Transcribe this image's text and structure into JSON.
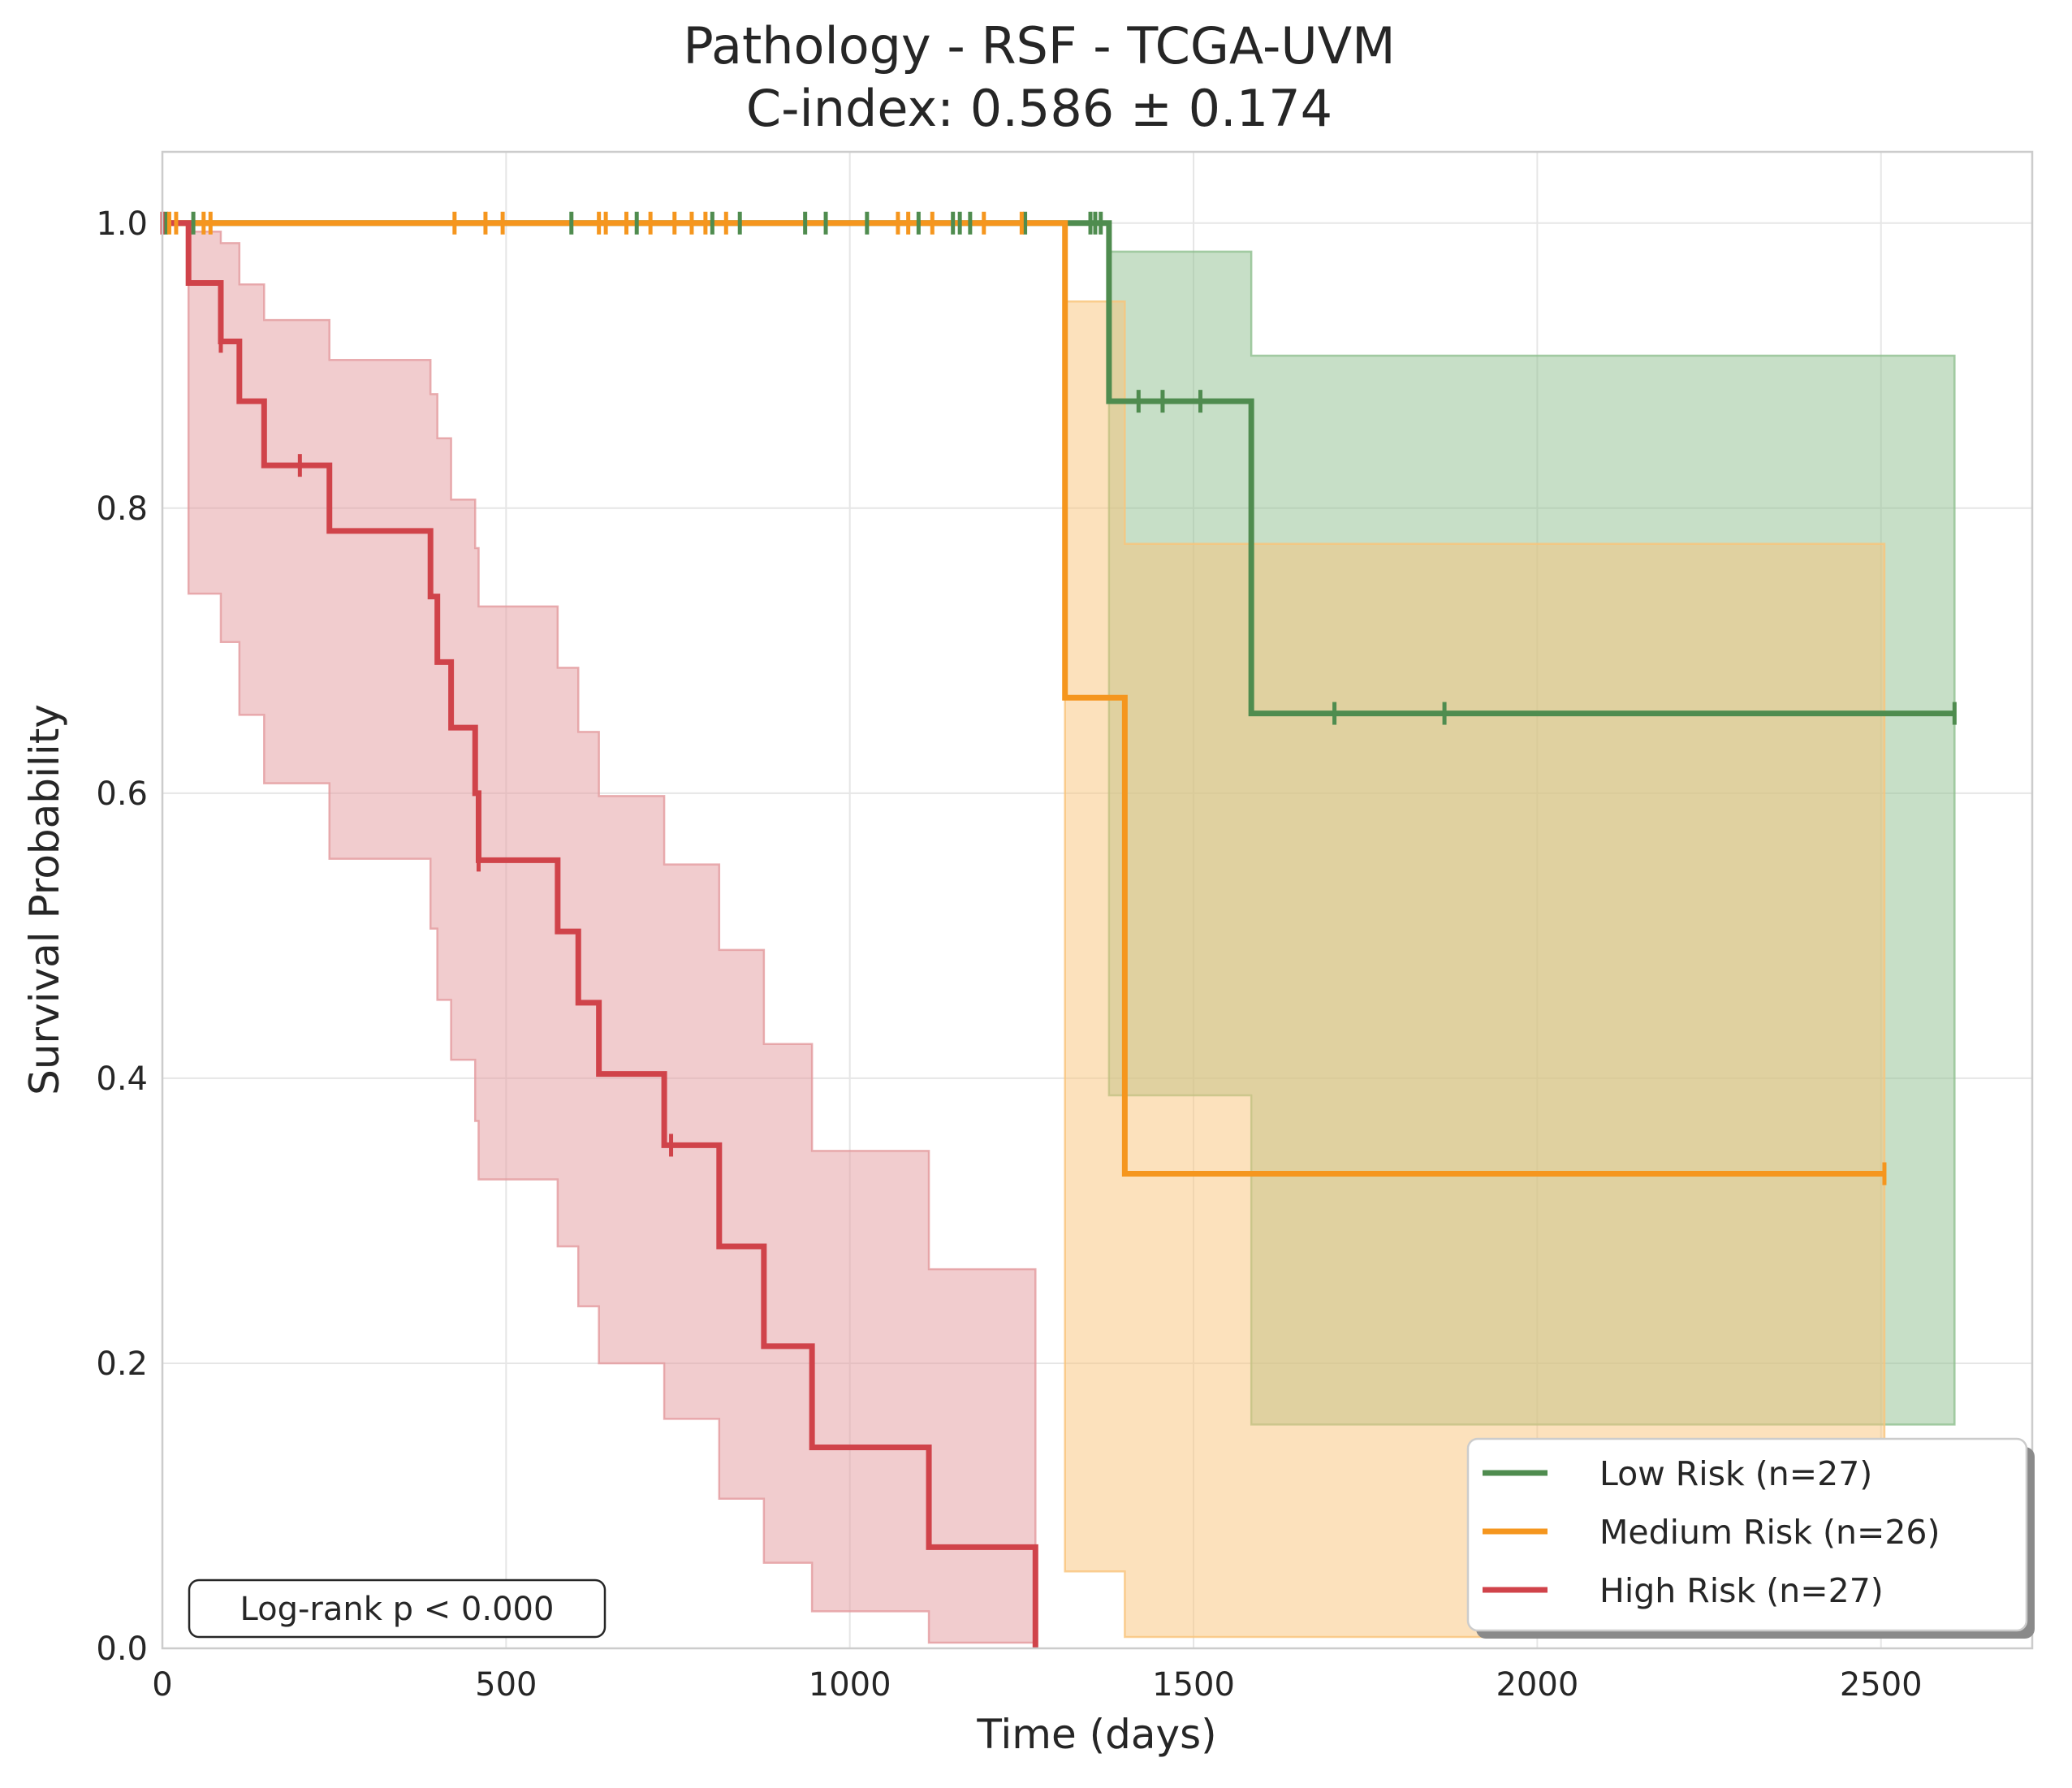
{
  "chart_data": {
    "type": "line",
    "title": "Pathology - RSF - TCGA-UVM",
    "subtitle": "C-index: 0.586 ± 0.174",
    "xlabel": "Time (days)",
    "ylabel": "Survival Probability",
    "xlim": [
      0,
      2720
    ],
    "ylim": [
      0,
      1.05
    ],
    "xticks": [
      0,
      500,
      1000,
      1500,
      2000,
      2500
    ],
    "xtick_labels": [
      "0",
      "500",
      "1000",
      "1500",
      "2000",
      "2500"
    ],
    "yticks": [
      0,
      0.2,
      0.4,
      0.6,
      0.8,
      1.0
    ],
    "ytick_labels": [
      "0.0",
      "0.2",
      "0.4",
      "0.6",
      "0.8",
      "1.0"
    ],
    "grid": true,
    "legend_position": "lower-right",
    "annotation": "Log-rank p < 0.000",
    "series": [
      {
        "name": "Low Risk (n=27)",
        "color": "#4f8c4f",
        "band_color": "#8fbf8f",
        "steps": [
          [
            0,
            1.0
          ],
          [
            1377,
            0.875
          ],
          [
            1584,
            0.656
          ],
          [
            2607,
            0.656
          ]
        ],
        "ci_lower": [
          [
            0,
            1.0
          ],
          [
            1377,
            0.388
          ],
          [
            1584,
            0.157
          ],
          [
            2607,
            0.157
          ]
        ],
        "ci_upper": [
          [
            0,
            1.0
          ],
          [
            1377,
            0.98
          ],
          [
            1584,
            0.907
          ],
          [
            2607,
            0.907
          ]
        ],
        "censors": [
          [
            5,
            1.0
          ],
          [
            45,
            1.0
          ],
          [
            595,
            1.0
          ],
          [
            690,
            1.0
          ],
          [
            800,
            1.0
          ],
          [
            840,
            1.0
          ],
          [
            935,
            1.0
          ],
          [
            965,
            1.0
          ],
          [
            1025,
            1.0
          ],
          [
            1100,
            1.0
          ],
          [
            1150,
            1.0
          ],
          [
            1160,
            1.0
          ],
          [
            1175,
            1.0
          ],
          [
            1255,
            1.0
          ],
          [
            1350,
            1.0
          ],
          [
            1357,
            1.0
          ],
          [
            1365,
            1.0
          ],
          [
            1420,
            0.875
          ],
          [
            1455,
            0.875
          ],
          [
            1510,
            0.875
          ],
          [
            1705,
            0.656
          ],
          [
            1865,
            0.656
          ],
          [
            2607,
            0.656
          ]
        ]
      },
      {
        "name": "Medium Risk (n=26)",
        "color": "#f5961e",
        "band_color": "#f9c47a",
        "steps": [
          [
            0,
            1.0
          ],
          [
            1313,
            0.667
          ],
          [
            1400,
            0.333
          ],
          [
            2505,
            0.333
          ]
        ],
        "ci_lower": [
          [
            0,
            1.0
          ],
          [
            1313,
            0.054
          ],
          [
            1400,
            0.008
          ],
          [
            2505,
            0.008
          ]
        ],
        "ci_upper": [
          [
            0,
            1.0
          ],
          [
            1313,
            0.945
          ],
          [
            1400,
            0.775
          ],
          [
            2505,
            0.775
          ]
        ],
        "censors": [
          [
            10,
            1.0
          ],
          [
            20,
            1.0
          ],
          [
            60,
            1.0
          ],
          [
            70,
            1.0
          ],
          [
            425,
            1.0
          ],
          [
            470,
            1.0
          ],
          [
            495,
            1.0
          ],
          [
            635,
            1.0
          ],
          [
            645,
            1.0
          ],
          [
            675,
            1.0
          ],
          [
            710,
            1.0
          ],
          [
            745,
            1.0
          ],
          [
            770,
            1.0
          ],
          [
            790,
            1.0
          ],
          [
            820,
            1.0
          ],
          [
            1070,
            1.0
          ],
          [
            1085,
            1.0
          ],
          [
            1120,
            1.0
          ],
          [
            1195,
            1.0
          ],
          [
            1250,
            1.0
          ],
          [
            2505,
            0.333
          ]
        ]
      },
      {
        "name": "High Risk (n=27)",
        "color": "#d0434a",
        "band_color": "#e49a9e",
        "steps": [
          [
            0,
            1.0
          ],
          [
            38,
            0.958
          ],
          [
            85,
            0.917
          ],
          [
            112,
            0.875
          ],
          [
            148,
            0.83
          ],
          [
            243,
            0.784
          ],
          [
            390,
            0.738
          ],
          [
            400,
            0.692
          ],
          [
            420,
            0.646
          ],
          [
            455,
            0.6
          ],
          [
            460,
            0.553
          ],
          [
            575,
            0.503
          ],
          [
            605,
            0.453
          ],
          [
            635,
            0.403
          ],
          [
            730,
            0.353
          ],
          [
            810,
            0.282
          ],
          [
            875,
            0.212
          ],
          [
            945,
            0.141
          ],
          [
            1115,
            0.071
          ],
          [
            1270,
            0.0
          ]
        ],
        "ci_lower": [
          [
            0,
            1.0
          ],
          [
            38,
            0.74
          ],
          [
            85,
            0.706
          ],
          [
            112,
            0.655
          ],
          [
            148,
            0.607
          ],
          [
            243,
            0.554
          ],
          [
            390,
            0.505
          ],
          [
            400,
            0.455
          ],
          [
            420,
            0.413
          ],
          [
            455,
            0.37
          ],
          [
            460,
            0.329
          ],
          [
            575,
            0.282
          ],
          [
            605,
            0.24
          ],
          [
            635,
            0.2
          ],
          [
            730,
            0.161
          ],
          [
            810,
            0.105
          ],
          [
            875,
            0.06
          ],
          [
            945,
            0.026
          ],
          [
            1115,
            0.004
          ],
          [
            1270,
            0.004
          ]
        ],
        "ci_upper": [
          [
            0,
            1.0
          ],
          [
            38,
            0.994
          ],
          [
            85,
            0.986
          ],
          [
            112,
            0.957
          ],
          [
            148,
            0.932
          ],
          [
            243,
            0.904
          ],
          [
            390,
            0.88
          ],
          [
            400,
            0.849
          ],
          [
            420,
            0.806
          ],
          [
            455,
            0.772
          ],
          [
            460,
            0.731
          ],
          [
            575,
            0.688
          ],
          [
            605,
            0.643
          ],
          [
            635,
            0.598
          ],
          [
            730,
            0.55
          ],
          [
            810,
            0.49
          ],
          [
            875,
            0.424
          ],
          [
            945,
            0.349
          ],
          [
            1115,
            0.266
          ],
          [
            1270,
            0.266
          ]
        ],
        "censors": [
          [
            0,
            1.0
          ],
          [
            85,
            0.917
          ],
          [
            200,
            0.83
          ],
          [
            460,
            0.553
          ],
          [
            740,
            0.353
          ]
        ]
      }
    ]
  }
}
